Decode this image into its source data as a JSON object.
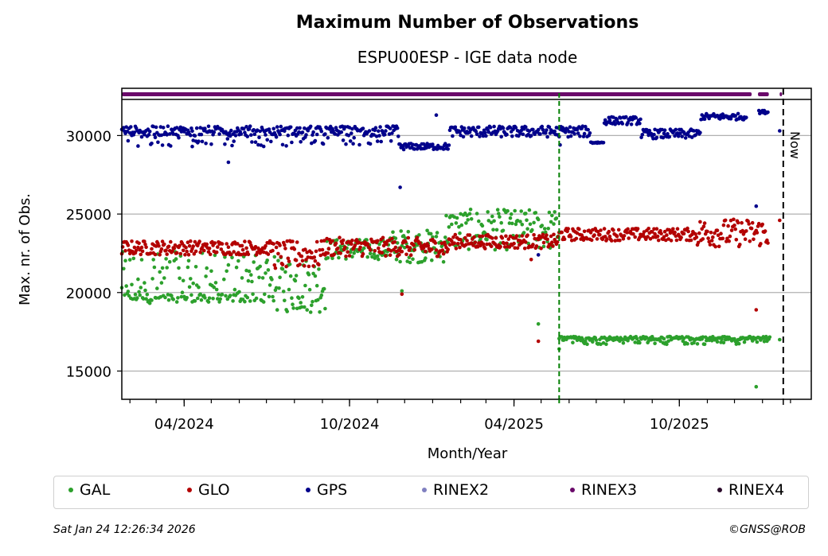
{
  "chart_data": {
    "type": "scatter",
    "title": "Maximum Number of Observations",
    "subtitle": "ESPU00ESP - IGE data node",
    "xlabel": "Month/Year",
    "ylabel": "Max. nr. of Obs.",
    "xlim": [
      "2024-01-23",
      "2026-02-24"
    ],
    "ylim": [
      13200,
      32300
    ],
    "yticks": [
      15000,
      20000,
      25000,
      30000
    ],
    "ytick_labels": [
      "15000",
      "20000",
      "25000",
      "30000"
    ],
    "xticks": [
      "2024-04-01",
      "2024-10-01",
      "2025-04-01",
      "2025-10-01"
    ],
    "xtick_labels": [
      "04/2024",
      "10/2024",
      "04/2025",
      "10/2025"
    ],
    "grid": "y",
    "now_date": "2026-01-24",
    "now_label": "Now",
    "event_date": "2025-05-21",
    "rinex3_coverage": [
      [
        "2024-01-23",
        "2025-12-20"
      ],
      [
        "2025-12-27",
        "2026-01-08"
      ],
      [
        "2026-01-20",
        "2026-01-20"
      ]
    ],
    "series": [
      {
        "name": "GAL",
        "color": "#2ca02c",
        "segments": [
          {
            "from": "2024-01-23",
            "to": "2024-07-10",
            "low": 19300,
            "high": 22600,
            "base_low": 19400,
            "base_high": 19900
          },
          {
            "from": "2024-07-10",
            "to": "2024-09-05",
            "low": 18700,
            "high": 22300
          },
          {
            "from": "2024-09-05",
            "to": "2024-11-15",
            "low": 22100,
            "high": 23400
          },
          {
            "from": "2024-11-15",
            "to": "2025-01-15",
            "low": 21900,
            "high": 24000
          },
          {
            "from": "2025-01-15",
            "to": "2025-05-21",
            "low": 22700,
            "high": 25300
          },
          {
            "from": "2025-05-21",
            "to": "2026-01-10",
            "low": 16700,
            "high": 17200,
            "base_low": 17000,
            "base_high": 17200
          }
        ],
        "outliers": [
          [
            "2024-11-28",
            20100
          ],
          [
            "2025-04-28",
            18000
          ],
          [
            "2025-05-21",
            16400
          ],
          [
            "2025-12-25",
            14000
          ],
          [
            "2026-01-20",
            17000
          ]
        ]
      },
      {
        "name": "GLO",
        "color": "#b30000",
        "segments": [
          {
            "from": "2024-01-23",
            "to": "2024-07-10",
            "low": 22400,
            "high": 23300
          },
          {
            "from": "2024-07-10",
            "to": "2024-09-01",
            "low": 21500,
            "high": 23300
          },
          {
            "from": "2024-09-01",
            "to": "2025-01-20",
            "low": 22300,
            "high": 23500
          },
          {
            "from": "2025-01-20",
            "to": "2025-05-21",
            "low": 22800,
            "high": 23700
          },
          {
            "from": "2025-05-21",
            "to": "2025-10-20",
            "low": 23300,
            "high": 24100
          },
          {
            "from": "2025-10-20",
            "to": "2026-01-08",
            "low": 22900,
            "high": 24700
          }
        ],
        "outliers": [
          [
            "2024-11-28",
            19900
          ],
          [
            "2025-04-28",
            16900
          ],
          [
            "2025-04-20",
            22100
          ],
          [
            "2025-12-25",
            18900
          ],
          [
            "2026-01-20",
            24600
          ]
        ]
      },
      {
        "name": "GPS",
        "color": "#00008b",
        "segments": [
          {
            "from": "2024-01-23",
            "to": "2024-11-25",
            "low": 30000,
            "high": 30600,
            "base_low": 29300,
            "base_high": 30600
          },
          {
            "from": "2024-11-25",
            "to": "2025-01-20",
            "low": 29100,
            "high": 29500
          },
          {
            "from": "2025-01-20",
            "to": "2025-06-25",
            "low": 29900,
            "high": 30600
          },
          {
            "from": "2025-06-25",
            "to": "2025-07-10",
            "low": 29500,
            "high": 29600
          },
          {
            "from": "2025-07-10",
            "to": "2025-08-20",
            "low": 30700,
            "high": 31200
          },
          {
            "from": "2025-08-20",
            "to": "2025-10-25",
            "low": 29800,
            "high": 30400
          },
          {
            "from": "2025-10-25",
            "to": "2025-12-15",
            "low": 31000,
            "high": 31400
          },
          {
            "from": "2025-12-28",
            "to": "2026-01-08",
            "low": 31400,
            "high": 31600
          }
        ],
        "outliers": [
          [
            "2024-11-26",
            26700
          ],
          [
            "2024-04-10",
            29300
          ],
          [
            "2024-05-20",
            28300
          ],
          [
            "2025-01-05",
            31300
          ],
          [
            "2025-04-28",
            22400
          ],
          [
            "2025-05-22",
            29400
          ],
          [
            "2025-12-25",
            25500
          ],
          [
            "2026-01-20",
            30300
          ]
        ]
      }
    ]
  },
  "legend": {
    "items": [
      {
        "label": "GAL",
        "color": "#2ca02c"
      },
      {
        "label": "GLO",
        "color": "#b30000"
      },
      {
        "label": "GPS",
        "color": "#00008b"
      },
      {
        "label": "RINEX2",
        "color": "#8080c0"
      },
      {
        "label": "RINEX3",
        "color": "#6a0a6a"
      },
      {
        "label": "RINEX4",
        "color": "#2a0a2a"
      }
    ]
  },
  "footer": {
    "date": "Sat Jan 24 12:26:34 2026",
    "copyright": "©GNSS@ROB"
  }
}
